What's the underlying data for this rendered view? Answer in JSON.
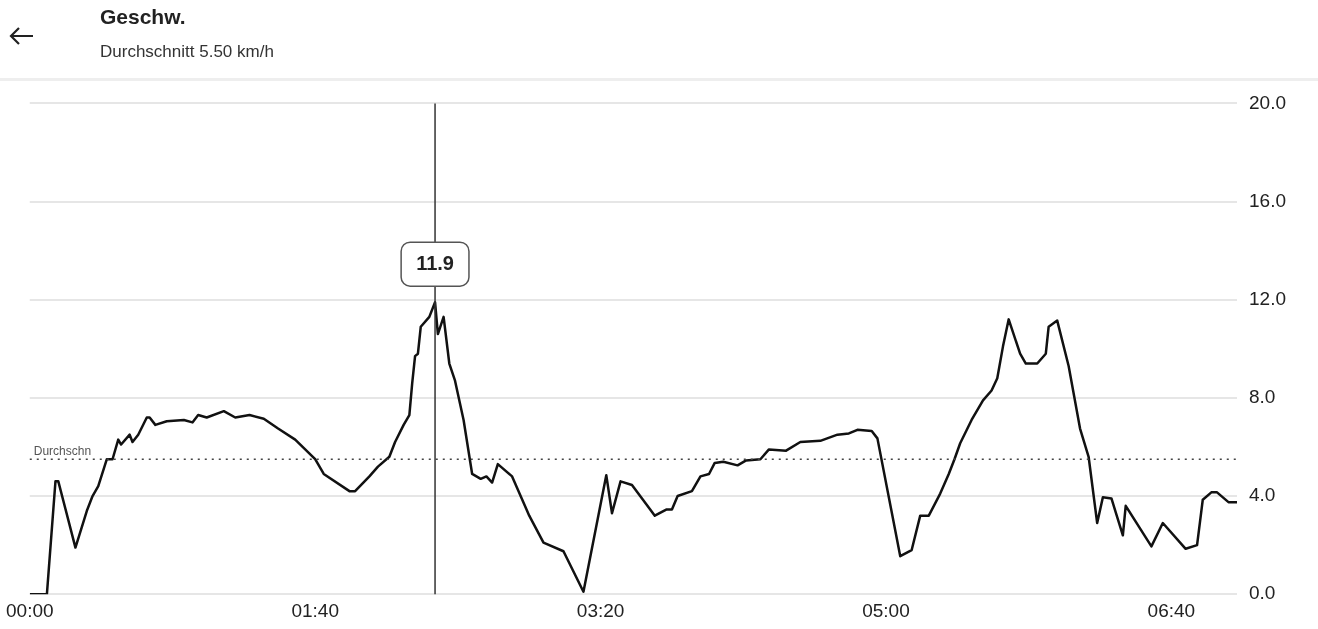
{
  "chart_data": {
    "type": "line",
    "title": "Geschw.",
    "subtitle": "Durchschnitt 5.50 km/h",
    "x": [
      0,
      6,
      9,
      10,
      16,
      20,
      22,
      24,
      27,
      29,
      31,
      32,
      35,
      36,
      38,
      41,
      42,
      44,
      48,
      54,
      57,
      59,
      62,
      68,
      72,
      77,
      82,
      87,
      93,
      100,
      103,
      112,
      114,
      119,
      122,
      126,
      128,
      131,
      133,
      134,
      135,
      136,
      137,
      140,
      142,
      143,
      145,
      147,
      149,
      152,
      155,
      158,
      160,
      162,
      164,
      169,
      175,
      180,
      187,
      194,
      202,
      204,
      207,
      211,
      219,
      223,
      225,
      227,
      232,
      235,
      238,
      240,
      243,
      248,
      251,
      256,
      259,
      265,
      270,
      277,
      283,
      287,
      290,
      295,
      297,
      305,
      309,
      312,
      315,
      319,
      322,
      324,
      326,
      330,
      334,
      337,
      339,
      341,
      343,
      347,
      349,
      353,
      356,
      357,
      360,
      364,
      368,
      371,
      374,
      376,
      379,
      383,
      384,
      393,
      397,
      405,
      409,
      411,
      414,
      416,
      420,
      423
    ],
    "series": [
      {
        "color": "#111111",
        "values": [
          0,
          0,
          4.6,
          4.6,
          1.9,
          3.4,
          4.0,
          4.4,
          5.5,
          5.5,
          6.3,
          6.1,
          6.5,
          6.2,
          6.5,
          7.2,
          7.2,
          6.9,
          7.05,
          7.1,
          7.0,
          7.3,
          7.2,
          7.46,
          7.2,
          7.3,
          7.15,
          6.75,
          6.3,
          5.5,
          4.9,
          4.2,
          4.2,
          4.8,
          5.2,
          5.6,
          6.2,
          6.9,
          7.3,
          8.6,
          9.7,
          9.8,
          10.9,
          11.3,
          11.9,
          10.6,
          11.3,
          9.4,
          8.7,
          7.1,
          4.9,
          4.7,
          4.8,
          4.55,
          5.3,
          4.8,
          3.2,
          2.1,
          1.75,
          0.1,
          4.85,
          3.3,
          4.6,
          4.45,
          3.2,
          3.45,
          3.45,
          4.0,
          4.2,
          4.8,
          4.9,
          5.35,
          5.4,
          5.25,
          5.45,
          5.5,
          5.9,
          5.85,
          6.2,
          6.25,
          6.5,
          6.55,
          6.7,
          6.65,
          6.35,
          1.55,
          1.8,
          3.2,
          3.2,
          4.1,
          4.9,
          5.5,
          6.15,
          7.1,
          7.9,
          8.3,
          8.8,
          10.1,
          11.2,
          9.8,
          9.4,
          9.4,
          9.8,
          10.9,
          11.15,
          9.3,
          6.75,
          5.6,
          2.9,
          3.95,
          3.9,
          2.4,
          3.6,
          1.95,
          2.9,
          1.85,
          2.0,
          3.85,
          4.15,
          4.15,
          3.75,
          3.75
        ]
      }
    ],
    "xlim": [
      0,
      423
    ],
    "xticks": [
      {
        "value": 0,
        "label": "00:00"
      },
      {
        "value": 100,
        "label": "01:40"
      },
      {
        "value": 200,
        "label": "03:20"
      },
      {
        "value": 300,
        "label": "05:00"
      },
      {
        "value": 400,
        "label": "06:40"
      }
    ],
    "ylim": [
      0,
      20
    ],
    "yticks": [
      {
        "value": 0,
        "label": "0.0"
      },
      {
        "value": 4,
        "label": "4.0"
      },
      {
        "value": 8,
        "label": "8.0"
      },
      {
        "value": 12,
        "label": "12.0"
      },
      {
        "value": 16,
        "label": "16.0"
      },
      {
        "value": 20,
        "label": "20.0"
      }
    ],
    "grid": "y",
    "legend": false,
    "marker": "none",
    "line_style": "solid",
    "ref_lines": [
      {
        "axis": "y",
        "value": 5.5,
        "label": "Durchschn",
        "line_style": "dotted",
        "color": "#444444"
      },
      {
        "axis": "x",
        "value": 142,
        "color": "#333333"
      }
    ],
    "annotations": [
      {
        "text": "11.9",
        "x": 142,
        "y": 11.9
      }
    ]
  }
}
